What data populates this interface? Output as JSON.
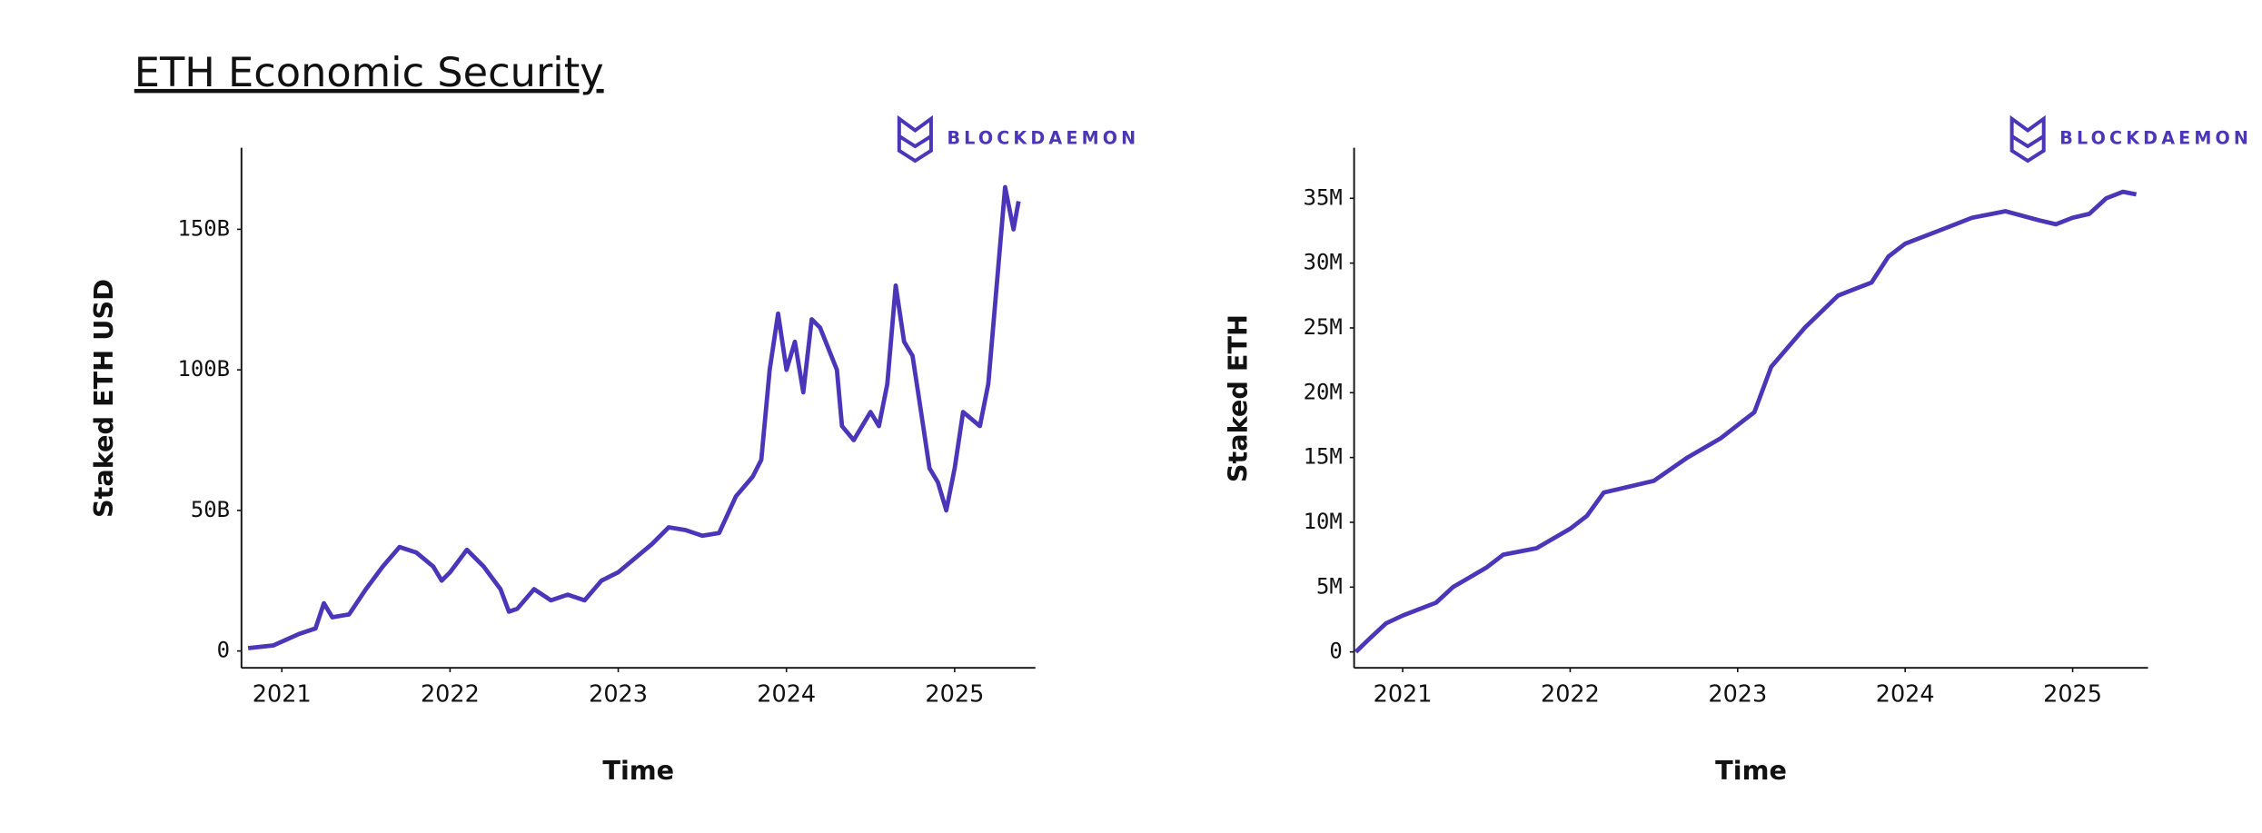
{
  "title": "ETH Economic Security",
  "logo": "BLOCKDAEMON",
  "chart_data": [
    {
      "type": "line",
      "xlabel": "Time",
      "ylabel": "Staked ETH USD",
      "xlim": [
        2020.76,
        2025.48
      ],
      "ylim": [
        -6,
        179
      ],
      "xticks": [
        2021,
        2022,
        2023,
        2024,
        2025
      ],
      "yticks": [
        0,
        {
          "value": 50,
          "label": "50B"
        },
        {
          "value": 100,
          "label": "100B"
        },
        {
          "value": 150,
          "label": "150B"
        }
      ],
      "series": [
        {
          "name": "Staked ETH USD",
          "color": "#4b35b8",
          "x": [
            2020.8,
            2020.95,
            2021.1,
            2021.2,
            2021.25,
            2021.3,
            2021.4,
            2021.5,
            2021.6,
            2021.7,
            2021.8,
            2021.9,
            2021.95,
            2022.0,
            2022.1,
            2022.2,
            2022.3,
            2022.35,
            2022.4,
            2022.5,
            2022.6,
            2022.7,
            2022.8,
            2022.9,
            2023.0,
            2023.1,
            2023.2,
            2023.3,
            2023.4,
            2023.5,
            2023.6,
            2023.7,
            2023.8,
            2023.85,
            2023.9,
            2023.95,
            2024.0,
            2024.05,
            2024.1,
            2024.15,
            2024.2,
            2024.3,
            2024.33,
            2024.4,
            2024.5,
            2024.55,
            2024.6,
            2024.65,
            2024.7,
            2024.75,
            2024.8,
            2024.85,
            2024.9,
            2024.95,
            2025.0,
            2025.05,
            2025.15,
            2025.2,
            2025.25,
            2025.3,
            2025.35,
            2025.38
          ],
          "values": [
            1,
            2,
            6,
            8,
            17,
            12,
            13,
            22,
            30,
            37,
            35,
            30,
            25,
            28,
            36,
            30,
            22,
            14,
            15,
            22,
            18,
            20,
            18,
            25,
            28,
            33,
            38,
            44,
            43,
            41,
            42,
            55,
            62,
            68,
            100,
            120,
            100,
            110,
            92,
            118,
            115,
            100,
            80,
            75,
            85,
            80,
            95,
            130,
            110,
            105,
            85,
            65,
            60,
            50,
            65,
            85,
            80,
            95,
            130,
            165,
            150,
            160
          ]
        }
      ]
    },
    {
      "type": "line",
      "xlabel": "Time",
      "ylabel": "Staked ETH",
      "xlim": [
        2020.71,
        2025.45
      ],
      "ylim": [
        -1.23,
        38.9
      ],
      "xticks": [
        2021,
        2022,
        2023,
        2024,
        2025
      ],
      "yticks": [
        0,
        {
          "value": 5,
          "label": "5M"
        },
        {
          "value": 10,
          "label": "10M"
        },
        {
          "value": 15,
          "label": "15M"
        },
        {
          "value": 20,
          "label": "20M"
        },
        {
          "value": 25,
          "label": "25M"
        },
        {
          "value": 30,
          "label": "30M"
        },
        {
          "value": 35,
          "label": "35M"
        }
      ],
      "series": [
        {
          "name": "Staked ETH",
          "color": "#4b35b8",
          "x": [
            2020.72,
            2020.8,
            2020.9,
            2021.0,
            2021.2,
            2021.3,
            2021.5,
            2021.6,
            2021.8,
            2022.0,
            2022.1,
            2022.2,
            2022.5,
            2022.7,
            2022.9,
            2023.0,
            2023.1,
            2023.2,
            2023.4,
            2023.6,
            2023.8,
            2023.9,
            2024.0,
            2024.2,
            2024.4,
            2024.6,
            2024.8,
            2024.9,
            2025.0,
            2025.1,
            2025.2,
            2025.3,
            2025.38
          ],
          "values": [
            0,
            1,
            2.2,
            2.8,
            3.8,
            5,
            6.5,
            7.5,
            8,
            9.5,
            10.5,
            12.3,
            13.2,
            15,
            16.5,
            17.5,
            18.5,
            22,
            25,
            27.5,
            28.5,
            30.5,
            31.5,
            32.5,
            33.5,
            34,
            33.3,
            33,
            33.5,
            33.8,
            35,
            35.5,
            35.3
          ]
        }
      ]
    }
  ]
}
